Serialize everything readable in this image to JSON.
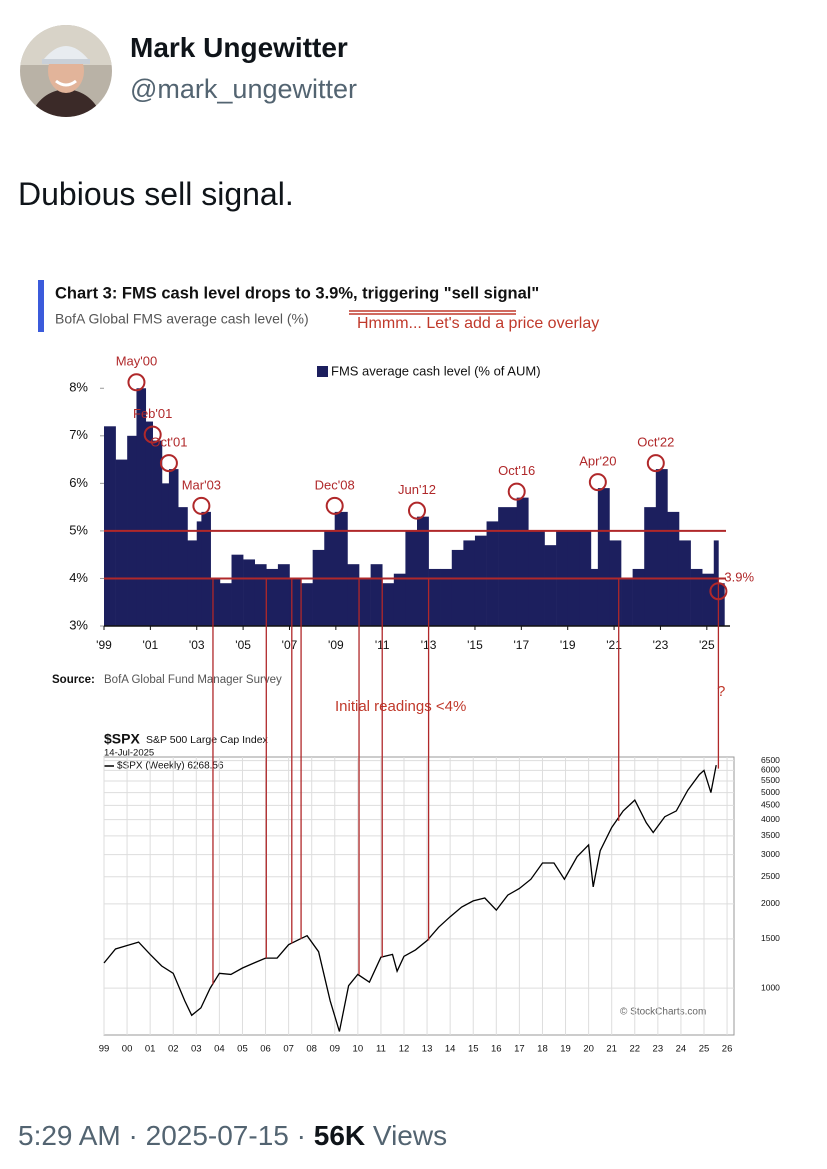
{
  "user": {
    "name": "Mark Ungewitter",
    "handle": "@mark_ungewitter"
  },
  "tweet": {
    "text": "Dubious sell signal."
  },
  "footer": {
    "time": "5:29 AM",
    "separator": "·",
    "date": "2025-07-15",
    "views": "56K",
    "views_label": "Views"
  },
  "chart_data": [
    {
      "type": "bar",
      "title": "Chart 3: FMS cash level drops to 3.9%, triggering \"sell signal\"",
      "subtitle": "BofA Global FMS average cash level (%)",
      "note": "Hmmm... Let's add a price overlay",
      "source_label": "Source:",
      "source": "BofA Global Fund Manager Survey",
      "series": [
        {
          "name": "FMS average cash level (% of AUM)",
          "color": "#1c1f5e",
          "x": [
            1999.0,
            1999.5,
            2000.0,
            2000.4,
            2000.8,
            2001.1,
            2001.5,
            2001.8,
            2002.2,
            2002.6,
            2003.0,
            2003.2,
            2003.6,
            2004.0,
            2004.5,
            2005.0,
            2005.5,
            2006.0,
            2006.5,
            2007.0,
            2007.5,
            2008.0,
            2008.5,
            2008.95,
            2009.5,
            2010.0,
            2010.5,
            2011.0,
            2011.5,
            2012.0,
            2012.5,
            2013.0,
            2013.5,
            2014.0,
            2014.5,
            2015.0,
            2015.5,
            2016.0,
            2016.8,
            2017.3,
            2018.0,
            2018.5,
            2019.0,
            2019.5,
            2020.0,
            2020.3,
            2020.8,
            2021.3,
            2021.8,
            2022.3,
            2022.8,
            2023.3,
            2023.8,
            2024.3,
            2024.8,
            2025.3,
            2025.5
          ],
          "values": [
            7.2,
            6.5,
            7.0,
            8.0,
            7.3,
            6.9,
            6.0,
            6.3,
            5.5,
            4.8,
            5.2,
            5.4,
            4.0,
            3.9,
            4.5,
            4.4,
            4.3,
            4.2,
            4.3,
            4.0,
            3.9,
            4.6,
            5.0,
            5.4,
            4.3,
            4.0,
            4.3,
            3.9,
            4.1,
            5.0,
            5.3,
            4.2,
            4.2,
            4.6,
            4.8,
            4.9,
            5.2,
            5.5,
            5.7,
            5.0,
            4.7,
            5.0,
            5.0,
            5.0,
            4.2,
            5.9,
            4.8,
            4.0,
            4.2,
            5.5,
            6.3,
            5.4,
            4.8,
            4.2,
            4.1,
            4.8,
            3.9
          ]
        }
      ],
      "xlim": [
        1999,
        2026
      ],
      "xticks": [
        {
          "value": 1999,
          "label": "'99"
        },
        {
          "value": 2001,
          "label": "'01"
        },
        {
          "value": 2003,
          "label": "'03"
        },
        {
          "value": 2005,
          "label": "'05"
        },
        {
          "value": 2007,
          "label": "'07"
        },
        {
          "value": 2009,
          "label": "'09"
        },
        {
          "value": 2011,
          "label": "'11"
        },
        {
          "value": 2013,
          "label": "'13"
        },
        {
          "value": 2015,
          "label": "'15"
        },
        {
          "value": 2017,
          "label": "'17"
        },
        {
          "value": 2019,
          "label": "'19"
        },
        {
          "value": 2021,
          "label": "'21"
        },
        {
          "value": 2023,
          "label": "'23"
        },
        {
          "value": 2025,
          "label": "'25"
        }
      ],
      "ylim": [
        3,
        8.3
      ],
      "yticks": [
        {
          "value": 3,
          "label": "3%"
        },
        {
          "value": 4,
          "label": "4%"
        },
        {
          "value": 5,
          "label": "5%"
        },
        {
          "value": 6,
          "label": "6%"
        },
        {
          "value": 7,
          "label": "7%"
        },
        {
          "value": 8,
          "label": "8%"
        }
      ],
      "annotations": [
        {
          "label": "May'00",
          "x": 2000.4,
          "y": 8.0
        },
        {
          "label": "Feb'01",
          "x": 2001.1,
          "y": 6.9
        },
        {
          "label": "Oct'01",
          "x": 2001.8,
          "y": 6.3
        },
        {
          "label": "Mar'03",
          "x": 2003.2,
          "y": 5.4
        },
        {
          "label": "Dec'08",
          "x": 2008.95,
          "y": 5.4
        },
        {
          "label": "Jun'12",
          "x": 2012.5,
          "y": 5.3
        },
        {
          "label": "Oct'16",
          "x": 2016.8,
          "y": 5.7
        },
        {
          "label": "Apr'20",
          "x": 2020.3,
          "y": 5.9
        },
        {
          "label": "Oct'22",
          "x": 2022.8,
          "y": 6.3
        },
        {
          "label": "3.9%",
          "x": 2025.5,
          "y": 3.9
        }
      ],
      "hlines": [
        5,
        4
      ],
      "vlines": [
        2003.7,
        2006.0,
        2007.1,
        2007.5,
        2010.0,
        2011.0,
        2013.0,
        2021.2,
        2025.5
      ],
      "vlines_label": "Initial readings <4%",
      "question": "?"
    },
    {
      "type": "line",
      "title": "$SPX",
      "subtitle": "S&P 500 Large Cap Index",
      "date": "14-Jul-2025",
      "credit": "© StockCharts.com",
      "log_scale": true,
      "grid": true,
      "series": [
        {
          "name": "$SPX (Weekly) 6268.56",
          "color": "#000000",
          "x": [
            1999.0,
            1999.5,
            2000.0,
            2000.5,
            2001.0,
            2001.5,
            2002.0,
            2002.5,
            2002.8,
            2003.2,
            2003.6,
            2004.0,
            2004.5,
            2005.0,
            2005.5,
            2006.0,
            2006.5,
            2007.0,
            2007.5,
            2007.8,
            2008.3,
            2008.8,
            2009.2,
            2009.6,
            2010.0,
            2010.5,
            2011.0,
            2011.5,
            2011.7,
            2012.0,
            2012.5,
            2013.0,
            2013.5,
            2014.0,
            2014.5,
            2015.0,
            2015.5,
            2016.0,
            2016.5,
            2017.0,
            2017.5,
            2018.0,
            2018.5,
            2018.95,
            2019.5,
            2020.0,
            2020.2,
            2020.5,
            2021.0,
            2021.5,
            2022.0,
            2022.5,
            2022.8,
            2023.3,
            2023.8,
            2024.3,
            2024.8,
            2025.0,
            2025.3,
            2025.53
          ],
          "values": [
            1230,
            1380,
            1420,
            1460,
            1320,
            1200,
            1130,
            900,
            800,
            850,
            1000,
            1130,
            1120,
            1180,
            1230,
            1280,
            1280,
            1430,
            1500,
            1540,
            1350,
            900,
            700,
            1020,
            1120,
            1050,
            1290,
            1320,
            1150,
            1300,
            1370,
            1480,
            1650,
            1800,
            1950,
            2050,
            2100,
            1900,
            2150,
            2270,
            2450,
            2800,
            2800,
            2450,
            2950,
            3250,
            2300,
            3100,
            3750,
            4300,
            4700,
            3900,
            3600,
            4100,
            4300,
            5100,
            5800,
            6000,
            5000,
            6268.56
          ]
        }
      ],
      "xlim": [
        1999,
        2026.3
      ],
      "xticks": [
        {
          "value": 1999,
          "label": "99"
        },
        {
          "value": 2000,
          "label": "00"
        },
        {
          "value": 2001,
          "label": "01"
        },
        {
          "value": 2002,
          "label": "02"
        },
        {
          "value": 2003,
          "label": "03"
        },
        {
          "value": 2004,
          "label": "04"
        },
        {
          "value": 2005,
          "label": "05"
        },
        {
          "value": 2006,
          "label": "06"
        },
        {
          "value": 2007,
          "label": "07"
        },
        {
          "value": 2008,
          "label": "08"
        },
        {
          "value": 2009,
          "label": "09"
        },
        {
          "value": 2010,
          "label": "10"
        },
        {
          "value": 2011,
          "label": "11"
        },
        {
          "value": 2012,
          "label": "12"
        },
        {
          "value": 2013,
          "label": "13"
        },
        {
          "value": 2014,
          "label": "14"
        },
        {
          "value": 2015,
          "label": "15"
        },
        {
          "value": 2016,
          "label": "16"
        },
        {
          "value": 2017,
          "label": "17"
        },
        {
          "value": 2018,
          "label": "18"
        },
        {
          "value": 2019,
          "label": "19"
        },
        {
          "value": 2020,
          "label": "20"
        },
        {
          "value": 2021,
          "label": "21"
        },
        {
          "value": 2022,
          "label": "22"
        },
        {
          "value": 2023,
          "label": "23"
        },
        {
          "value": 2024,
          "label": "24"
        },
        {
          "value": 2025,
          "label": "25"
        },
        {
          "value": 2026,
          "label": "26"
        }
      ],
      "ylim": [
        680,
        6700
      ],
      "yticks": [
        1000,
        1500,
        2000,
        2500,
        3000,
        3500,
        4000,
        4500,
        5000,
        5500,
        6000,
        6500
      ]
    }
  ]
}
